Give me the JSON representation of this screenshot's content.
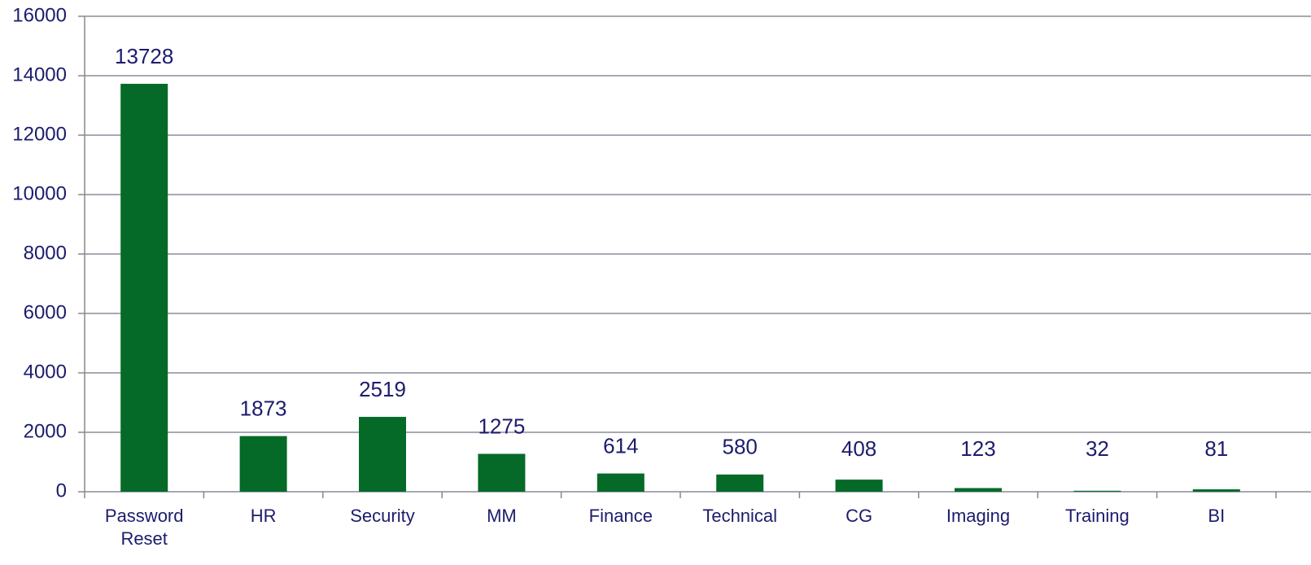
{
  "chart_data": {
    "type": "bar",
    "categories": [
      "Password Reset",
      "HR",
      "Security",
      "MM",
      "Finance",
      "Technical",
      "CG",
      "Imaging",
      "Training",
      "BI"
    ],
    "values": [
      13728,
      1873,
      2519,
      1275,
      614,
      580,
      408,
      123,
      32,
      81
    ],
    "color": "#056a28",
    "ylim": [
      0,
      16000
    ],
    "yticks": [
      0,
      2000,
      4000,
      6000,
      8000,
      10000,
      12000,
      14000,
      16000
    ],
    "grid": true
  }
}
